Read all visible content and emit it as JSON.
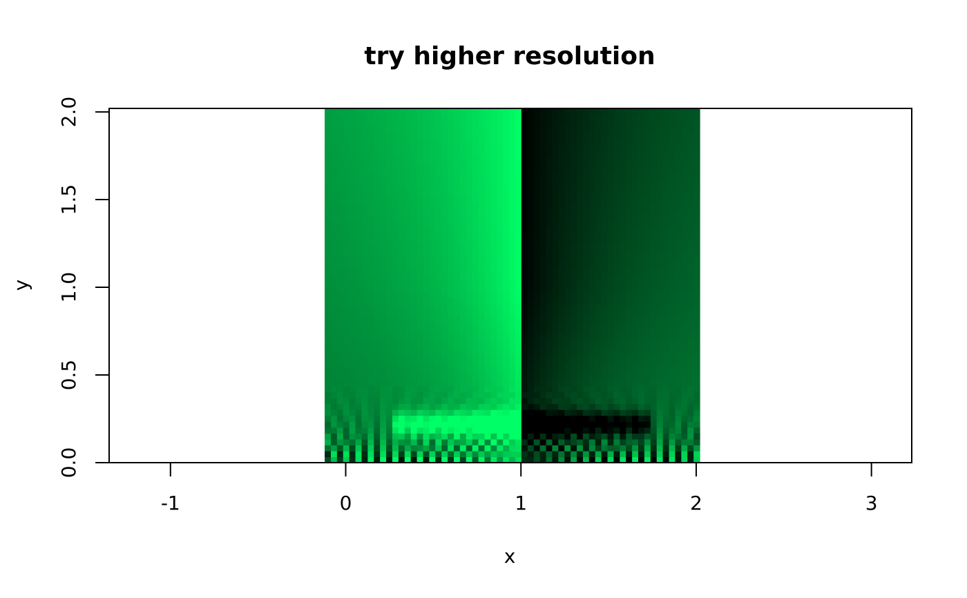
{
  "chart_data": {
    "type": "heatmap",
    "title": "try higher resolution",
    "xlabel": "x",
    "ylabel": "y",
    "xlim": [
      -1.35,
      3.23
    ],
    "ylim": [
      0,
      2.02
    ],
    "x_ticks": [
      "-1",
      "0",
      "1",
      "2",
      "3"
    ],
    "y_ticks": [
      "0.0",
      "0.5",
      "1.0",
      "1.5",
      "2.0"
    ],
    "grid": false,
    "colormap": [
      "#000000",
      "#007a33",
      "#00ff66"
    ],
    "field": {
      "x_range": [
        -0.12,
        2.02
      ],
      "y_range": [
        0,
        2.02
      ],
      "discontinuity_x": 1.0,
      "note_value": "image field: green bright left of x=1, dark right of x=1, oscillating near y=0"
    }
  }
}
